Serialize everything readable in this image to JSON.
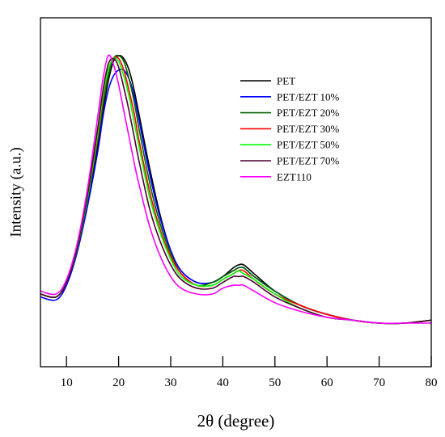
{
  "chart_data": {
    "type": "line",
    "title": "",
    "xlabel": "2θ (degree)",
    "ylabel": "Intensity (a.u.)",
    "xlim": [
      5,
      80
    ],
    "ylim": [
      0,
      1.2
    ],
    "xticks": [
      10,
      20,
      30,
      40,
      50,
      60,
      70,
      80
    ],
    "y_ticks_labeled": false,
    "grid": false,
    "legend_position": "upper-right",
    "series": [
      {
        "name": "PET",
        "color": "#000000",
        "x": [
          5,
          8,
          10,
          12,
          14,
          16,
          17,
          18,
          19,
          20,
          21,
          22,
          23,
          24,
          26,
          28,
          30,
          32,
          35,
          38,
          40,
          42,
          43,
          44,
          46,
          50,
          55,
          60,
          65,
          70,
          75,
          80
        ],
        "y": [
          0.25,
          0.24,
          0.29,
          0.4,
          0.56,
          0.76,
          0.88,
          0.98,
          1.05,
          1.07,
          1.06,
          1.02,
          0.95,
          0.86,
          0.68,
          0.52,
          0.4,
          0.33,
          0.29,
          0.29,
          0.31,
          0.34,
          0.35,
          0.35,
          0.32,
          0.26,
          0.21,
          0.18,
          0.16,
          0.15,
          0.15,
          0.16
        ]
      },
      {
        "name": "PET/EZT 10%",
        "color": "#0000ff",
        "x": [
          5,
          8,
          10,
          12,
          14,
          16,
          17,
          18,
          19,
          20,
          21,
          22,
          23,
          24,
          26,
          28,
          30,
          32,
          35,
          38,
          40,
          42,
          43,
          44,
          46,
          50,
          55,
          60,
          65,
          70,
          75,
          80
        ],
        "y": [
          0.24,
          0.23,
          0.28,
          0.39,
          0.55,
          0.74,
          0.86,
          0.95,
          1.0,
          1.02,
          1.02,
          0.99,
          0.93,
          0.84,
          0.66,
          0.51,
          0.4,
          0.33,
          0.29,
          0.29,
          0.31,
          0.33,
          0.34,
          0.34,
          0.31,
          0.26,
          0.21,
          0.18,
          0.16,
          0.15,
          0.15,
          0.16
        ]
      },
      {
        "name": "PET/EZT 20%",
        "color": "#006400",
        "x": [
          5,
          8,
          10,
          12,
          14,
          16,
          17,
          18,
          19,
          20,
          21,
          22,
          23,
          24,
          26,
          28,
          30,
          32,
          35,
          38,
          40,
          42,
          43,
          44,
          46,
          50,
          55,
          60,
          65,
          70,
          75,
          80
        ],
        "y": [
          0.25,
          0.24,
          0.29,
          0.4,
          0.57,
          0.78,
          0.9,
          1.0,
          1.06,
          1.07,
          1.05,
          0.99,
          0.91,
          0.81,
          0.63,
          0.49,
          0.39,
          0.32,
          0.28,
          0.29,
          0.31,
          0.33,
          0.34,
          0.34,
          0.31,
          0.26,
          0.21,
          0.18,
          0.16,
          0.15,
          0.15,
          0.16
        ]
      },
      {
        "name": "PET/EZT 30%",
        "color": "#ff0000",
        "x": [
          5,
          8,
          10,
          12,
          14,
          16,
          17,
          18,
          19,
          20,
          21,
          22,
          23,
          24,
          26,
          28,
          30,
          32,
          35,
          38,
          40,
          42,
          43,
          44,
          46,
          50,
          55,
          60,
          65,
          70,
          75,
          80
        ],
        "y": [
          0.25,
          0.24,
          0.29,
          0.41,
          0.58,
          0.79,
          0.92,
          1.02,
          1.06,
          1.06,
          1.02,
          0.95,
          0.87,
          0.77,
          0.6,
          0.47,
          0.38,
          0.32,
          0.28,
          0.28,
          0.3,
          0.32,
          0.33,
          0.33,
          0.3,
          0.25,
          0.21,
          0.18,
          0.16,
          0.15,
          0.15,
          0.16
        ]
      },
      {
        "name": "PET/EZT 50%",
        "color": "#00ff00",
        "x": [
          5,
          8,
          10,
          12,
          14,
          16,
          17,
          18,
          19,
          20,
          21,
          22,
          23,
          24,
          26,
          28,
          30,
          32,
          35,
          38,
          40,
          42,
          43,
          44,
          46,
          50,
          55,
          60,
          65,
          70,
          75,
          80
        ],
        "y": [
          0.25,
          0.24,
          0.29,
          0.41,
          0.58,
          0.8,
          0.93,
          1.02,
          1.06,
          1.05,
          1.0,
          0.93,
          0.84,
          0.75,
          0.58,
          0.46,
          0.37,
          0.31,
          0.28,
          0.28,
          0.3,
          0.32,
          0.33,
          0.32,
          0.3,
          0.25,
          0.2,
          0.17,
          0.16,
          0.15,
          0.15,
          0.16
        ]
      },
      {
        "name": "PET/EZT 70%",
        "color": "#4b0030",
        "x": [
          5,
          8,
          10,
          12,
          14,
          16,
          17,
          18,
          19,
          20,
          21,
          22,
          23,
          24,
          26,
          28,
          30,
          32,
          35,
          38,
          40,
          42,
          43,
          44,
          46,
          50,
          55,
          60,
          65,
          70,
          75,
          80
        ],
        "y": [
          0.25,
          0.24,
          0.29,
          0.41,
          0.59,
          0.82,
          0.95,
          1.04,
          1.06,
          1.03,
          0.96,
          0.88,
          0.79,
          0.7,
          0.54,
          0.43,
          0.35,
          0.3,
          0.27,
          0.27,
          0.29,
          0.31,
          0.31,
          0.31,
          0.29,
          0.24,
          0.2,
          0.17,
          0.16,
          0.15,
          0.15,
          0.16
        ]
      },
      {
        "name": "EZT110",
        "color": "#ff00ff",
        "x": [
          5,
          8,
          10,
          12,
          14,
          16,
          17,
          18,
          19,
          20,
          21,
          22,
          23,
          24,
          26,
          28,
          30,
          32,
          35,
          38,
          40,
          42,
          43,
          44,
          46,
          50,
          55,
          60,
          65,
          70,
          75,
          80
        ],
        "y": [
          0.26,
          0.25,
          0.3,
          0.42,
          0.61,
          0.86,
          0.99,
          1.07,
          1.04,
          0.97,
          0.88,
          0.79,
          0.7,
          0.62,
          0.48,
          0.38,
          0.31,
          0.27,
          0.25,
          0.25,
          0.27,
          0.28,
          0.28,
          0.28,
          0.26,
          0.22,
          0.19,
          0.17,
          0.16,
          0.15,
          0.15,
          0.15
        ]
      }
    ]
  }
}
